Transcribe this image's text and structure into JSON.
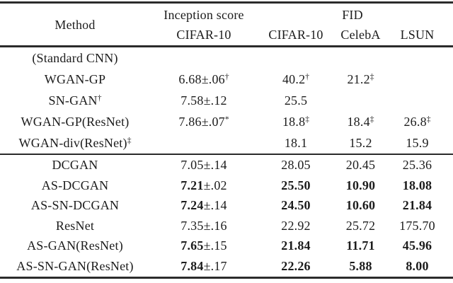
{
  "colors": {
    "background": "#ffffff",
    "text": "#1c1c1c",
    "rule": "#2b2b2b"
  },
  "header": {
    "method": "Method",
    "inception_group": "Inception score",
    "fid_group": "FID",
    "sub_columns": [
      "CIFAR-10",
      "CIFAR-10",
      "CelebA",
      "LSUN"
    ]
  },
  "sections": [
    {
      "rows": [
        {
          "method": {
            "text": "(Standard CNN)",
            "sup": ""
          },
          "cells": [
            null,
            null,
            null,
            null
          ]
        },
        {
          "method": {
            "text": "WGAN-GP",
            "sup": ""
          },
          "cells": [
            {
              "main": "6.68",
              "rest": "±.06",
              "sup": "†",
              "bold": false
            },
            {
              "main": "40.2",
              "rest": "",
              "sup": "†",
              "bold": false
            },
            {
              "main": "21.2",
              "rest": "",
              "sup": "‡",
              "bold": false
            },
            null
          ]
        },
        {
          "method": {
            "text": "SN-GAN",
            "sup": "†"
          },
          "cells": [
            {
              "main": "7.58",
              "rest": "±.12",
              "sup": "",
              "bold": false
            },
            {
              "main": "25.5",
              "rest": "",
              "sup": "",
              "bold": false
            },
            null,
            null
          ]
        },
        {
          "method": {
            "text": "WGAN-GP(ResNet)",
            "sup": ""
          },
          "cells": [
            {
              "main": "7.86",
              "rest": "±.07",
              "sup": "*",
              "bold": false
            },
            {
              "main": "18.8",
              "rest": "",
              "sup": "‡",
              "bold": false
            },
            {
              "main": "18.4",
              "rest": "",
              "sup": "‡",
              "bold": false
            },
            {
              "main": "26.8",
              "rest": "",
              "sup": "‡",
              "bold": false
            }
          ]
        },
        {
          "method": {
            "text": "WGAN-div(ResNet)",
            "sup": "‡"
          },
          "cells": [
            null,
            {
              "main": "18.1",
              "rest": "",
              "sup": "",
              "bold": false
            },
            {
              "main": "15.2",
              "rest": "",
              "sup": "",
              "bold": false
            },
            {
              "main": "15.9",
              "rest": "",
              "sup": "",
              "bold": false
            }
          ]
        }
      ]
    },
    {
      "rows": [
        {
          "method": {
            "text": "DCGAN",
            "sup": ""
          },
          "cells": [
            {
              "main": "7.05",
              "rest": "±.14",
              "sup": "",
              "bold": false
            },
            {
              "main": "28.05",
              "rest": "",
              "sup": "",
              "bold": false
            },
            {
              "main": "20.45",
              "rest": "",
              "sup": "",
              "bold": false
            },
            {
              "main": "25.36",
              "rest": "",
              "sup": "",
              "bold": false
            }
          ]
        },
        {
          "method": {
            "text": "AS-DCGAN",
            "sup": ""
          },
          "cells": [
            {
              "main": "7.21",
              "rest": "±.02",
              "sup": "",
              "bold": true
            },
            {
              "main": "25.50",
              "rest": "",
              "sup": "",
              "bold": true
            },
            {
              "main": "10.90",
              "rest": "",
              "sup": "",
              "bold": true
            },
            {
              "main": "18.08",
              "rest": "",
              "sup": "",
              "bold": true
            }
          ]
        },
        {
          "method": {
            "text": "AS-SN-DCGAN",
            "sup": ""
          },
          "cells": [
            {
              "main": "7.24",
              "rest": "±.14",
              "sup": "",
              "bold": true
            },
            {
              "main": "24.50",
              "rest": "",
              "sup": "",
              "bold": true
            },
            {
              "main": "10.60",
              "rest": "",
              "sup": "",
              "bold": true
            },
            {
              "main": "21.84",
              "rest": "",
              "sup": "",
              "bold": true
            }
          ]
        },
        {
          "method": {
            "text": "ResNet",
            "sup": ""
          },
          "cells": [
            {
              "main": "7.35",
              "rest": "±.16",
              "sup": "",
              "bold": false
            },
            {
              "main": "22.92",
              "rest": "",
              "sup": "",
              "bold": false
            },
            {
              "main": "25.72",
              "rest": "",
              "sup": "",
              "bold": false
            },
            {
              "main": "175.70",
              "rest": "",
              "sup": "",
              "bold": false
            }
          ]
        },
        {
          "method": {
            "text": "AS-GAN(ResNet)",
            "sup": ""
          },
          "cells": [
            {
              "main": "7.65",
              "rest": "±.15",
              "sup": "",
              "bold": true
            },
            {
              "main": "21.84",
              "rest": "",
              "sup": "",
              "bold": true
            },
            {
              "main": "11.71",
              "rest": "",
              "sup": "",
              "bold": true
            },
            {
              "main": "45.96",
              "rest": "",
              "sup": "",
              "bold": true
            }
          ]
        },
        {
          "method": {
            "text": "AS-SN-GAN(ResNet)",
            "sup": ""
          },
          "cells": [
            {
              "main": "7.84",
              "rest": "±.17",
              "sup": "",
              "bold": true
            },
            {
              "main": "22.26",
              "rest": "",
              "sup": "",
              "bold": true
            },
            {
              "main": "5.88",
              "rest": "",
              "sup": "",
              "bold": true
            },
            {
              "main": "8.00",
              "rest": "",
              "sup": "",
              "bold": true
            }
          ]
        }
      ]
    }
  ]
}
